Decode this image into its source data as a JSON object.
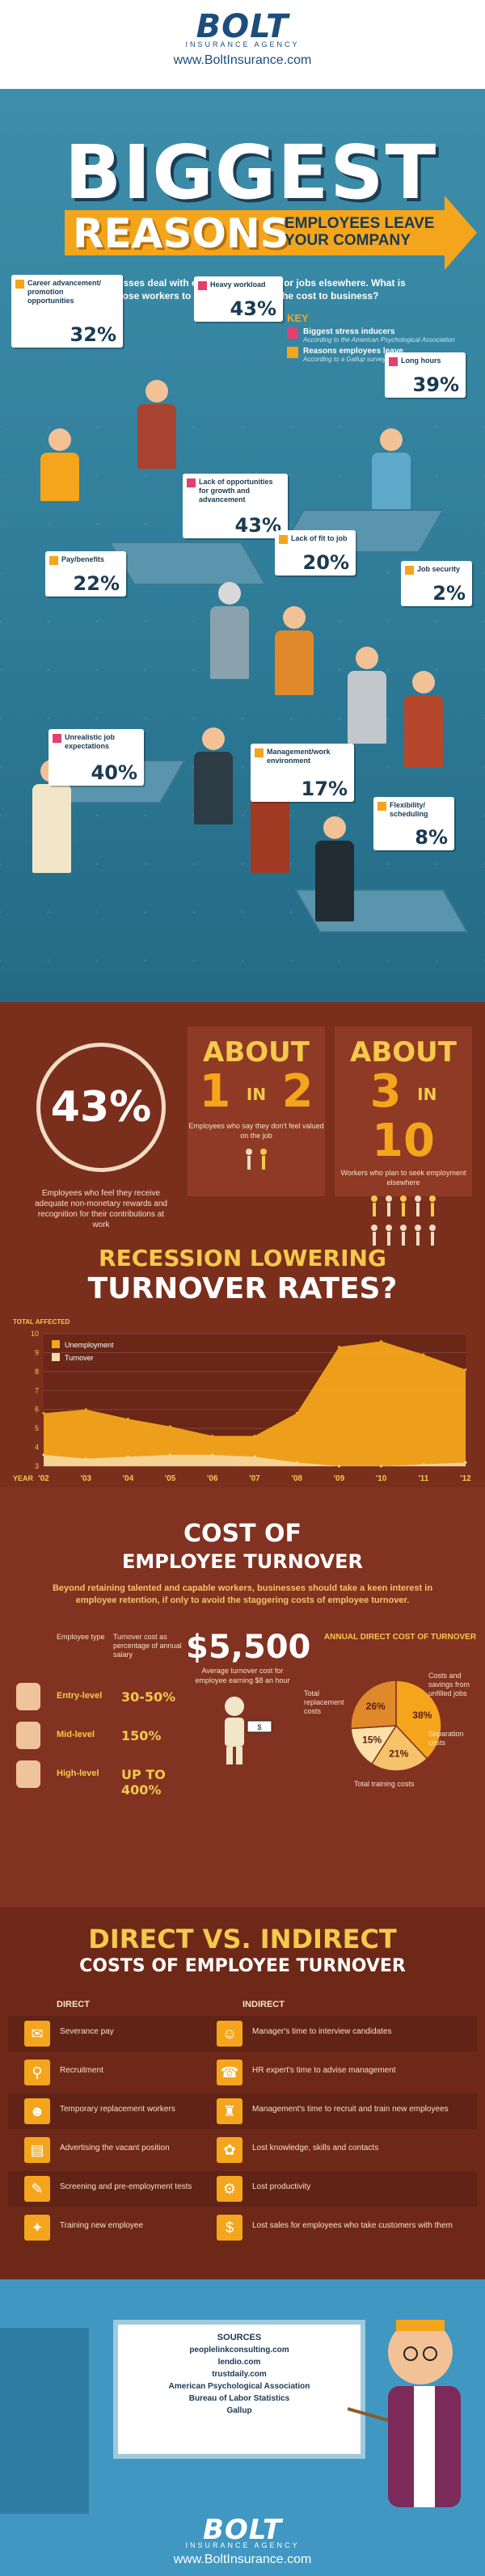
{
  "header": {
    "logo": "BOLT",
    "logo_sub": "INSURANCE AGENCY",
    "url": "www.BoltInsurance.com"
  },
  "hero": {
    "title": "BIGGEST",
    "subtitle": "REASONS",
    "tag_line1": "EMPLOYEES LEAVE",
    "tag_line2": "YOUR COMPANY",
    "intro": "All businesses deal with employees leaving for jobs elsewhere. What is leading those workers to leave, and what is the cost to business?",
    "key": {
      "title": "KEY",
      "items": [
        {
          "label": "Biggest stress inducers",
          "source": "According to the American Psychological Association",
          "color": "#e43f6f"
        },
        {
          "label": "Reasons employees leave",
          "source": "According to a Gallup survey",
          "color": "#f4a51c"
        }
      ]
    },
    "cards": [
      {
        "label": "Career advancement/ promotion opportunities",
        "pct": "32%",
        "kind": "orange"
      },
      {
        "label": "Heavy workload",
        "pct": "43%",
        "kind": "pink"
      },
      {
        "label": "Long hours",
        "pct": "39%",
        "kind": "pink"
      },
      {
        "label": "Lack of opportunities for growth and advancement",
        "pct": "43%",
        "kind": "pink"
      },
      {
        "label": "Pay/benefits",
        "pct": "22%",
        "kind": "orange"
      },
      {
        "label": "Lack of fit to job",
        "pct": "20%",
        "kind": "orange"
      },
      {
        "label": "Job security",
        "pct": "2%",
        "kind": "orange"
      },
      {
        "label": "Unrealistic job expectations",
        "pct": "40%",
        "kind": "pink"
      },
      {
        "label": "Management/work environment",
        "pct": "17%",
        "kind": "orange"
      },
      {
        "label": "Flexibility/ scheduling",
        "pct": "8%",
        "kind": "orange"
      }
    ]
  },
  "stats": {
    "left_pct": "43%",
    "left_desc": "Employees who feel they receive adequate non-monetary rewards and recognition for their contributions at work",
    "about1": {
      "word": "ABOUT",
      "a": "1",
      "in": "IN",
      "b": "2",
      "desc": "Employees who say they don't feel valued on the job"
    },
    "about2": {
      "word": "ABOUT",
      "a": "3",
      "in": "IN",
      "b": "10",
      "desc": "Workers who plan to seek employment elsewhere"
    }
  },
  "recession": {
    "line1": "RECESSION LOWERING",
    "line2": "TURNOVER RATES?"
  },
  "chart_data": {
    "type": "area",
    "title": "",
    "ylabel": "TOTAL AFFECTED",
    "xlabel": "YEAR",
    "ylim": [
      3,
      10
    ],
    "yticks": [
      "3",
      "4",
      "5",
      "6",
      "7",
      "8",
      "9",
      "10"
    ],
    "categories": [
      "'02",
      "'03",
      "'04",
      "'05",
      "'06",
      "'07",
      "'08",
      "'09",
      "'10",
      "'11",
      "'12"
    ],
    "series": [
      {
        "name": "Unemployment",
        "color": "#f4a51c",
        "values": [
          5.8,
          6.0,
          5.5,
          5.1,
          4.6,
          4.6,
          5.8,
          9.3,
          9.6,
          8.9,
          8.1
        ]
      },
      {
        "name": "Turnover",
        "color": "#f6dca8",
        "values": [
          3.6,
          3.4,
          3.5,
          3.6,
          3.6,
          3.5,
          3.2,
          2.9,
          3.0,
          3.1,
          3.2
        ]
      }
    ]
  },
  "cost": {
    "line1": "COST OF",
    "line2": "EMPLOYEE TURNOVER",
    "intro": "Beyond retaining talented and capable workers, businesses should take a keen interest in employee retention, if only to avoid the staggering costs of employee turnover.",
    "col1": "Employee type",
    "col2": "Turnover cost as percentage of annual salary",
    "rows": [
      {
        "level": "Entry-level",
        "value": "30-50%"
      },
      {
        "level": "Mid-level",
        "value": "150%"
      },
      {
        "level": "High-level",
        "value": "UP TO 400%"
      }
    ],
    "avg_value": "$5,500",
    "avg_desc": "Average turnover cost for employee earning $8 an hour",
    "annual_title": "ANNUAL DIRECT COST OF TURNOVER",
    "pie": [
      {
        "label": "Total replacement costs",
        "pct": "38%",
        "value": 38,
        "color": "#f4a51c"
      },
      {
        "label": "Costs and savings from unfilled jobs",
        "pct": "21%",
        "value": 21,
        "color": "#f6c26a"
      },
      {
        "label": "Separation costs",
        "pct": "15%",
        "value": 15,
        "color": "#fbe1a8"
      },
      {
        "label": "Total training costs",
        "pct": "26%",
        "value": 26,
        "color": "#e0892a"
      }
    ]
  },
  "dvi": {
    "line1": "DIRECT VS. INDIRECT",
    "line2": "COSTS OF EMPLOYEE TURNOVER",
    "direct_head": "DIRECT",
    "indirect_head": "INDIRECT",
    "direct": [
      "Severance pay",
      "Recruitment",
      "Temporary replacement workers",
      "Advertising the vacant position",
      "Screening and pre-employment tests",
      "Training new employee"
    ],
    "indirect": [
      "Manager's time to interview candidates",
      "HR expert's time to advise management",
      "Management's time to recruit and train new employees",
      "Lost knowledge, skills and contacts",
      "Lost productivity",
      "Lost sales for employees who take customers with them"
    ]
  },
  "sources": {
    "title": "SOURCES",
    "items": [
      "peoplelinkconsulting.com",
      "lendio.com",
      "trustdaily.com",
      "American Psychological Association",
      "Bureau of Labor Statistics",
      "Gallup"
    ]
  },
  "footer": {
    "logo": "BOLT",
    "logo_sub": "INSURANCE AGENCY",
    "url": "www.BoltInsurance.com"
  }
}
